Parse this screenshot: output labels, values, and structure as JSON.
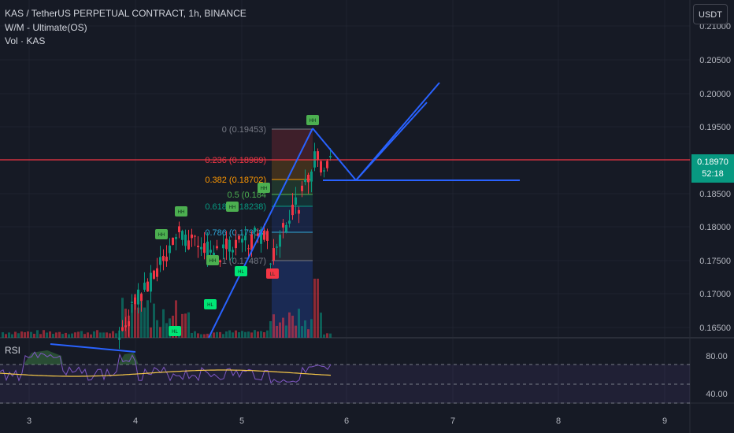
{
  "legend": {
    "symbol": "KAS / TetherUS PERPETUAL CONTRACT, 1h, BINANCE",
    "indicator1": "W/M - Ultimate(OS)",
    "indicator2": "Vol · KAS"
  },
  "currency_button": "USDT",
  "last_price": {
    "value": "0.18970",
    "countdown": "52:18"
  },
  "rsi": {
    "label": "RSI",
    "ticks": [
      "80.00",
      "40.00"
    ]
  },
  "price_axis": [
    "0.21000",
    "0.20500",
    "0.20000",
    "0.19500",
    "0.18500",
    "0.18000",
    "0.17500",
    "0.17000",
    "0.16500"
  ],
  "time_axis": [
    "3",
    "4",
    "5",
    "6",
    "7",
    "8",
    "9"
  ],
  "fib_levels": [
    {
      "ratio": "0",
      "price": "(0.19453)",
      "color": "#787b86"
    },
    {
      "ratio": "0.236",
      "price": "(0.18989)",
      "color": "#f23645"
    },
    {
      "ratio": "0.382",
      "price": "(0.18702)",
      "color": "#ff9800"
    },
    {
      "ratio": "0.5",
      "price": "(0.184",
      "color": "#4caf50"
    },
    {
      "ratio": "0.618",
      "price": "(0.18238)",
      "color": "#089981"
    },
    {
      "ratio": "0.786",
      "price": "(0.17908)",
      "color": "#2fa7d9"
    },
    {
      "ratio": "1",
      "price": "(0.17487)",
      "color": "#787b86"
    }
  ],
  "markers": [
    {
      "text": "HH",
      "color": "#4caf50"
    },
    {
      "text": "HH",
      "color": "#4caf50"
    },
    {
      "text": "HH",
      "color": "#4caf50"
    },
    {
      "text": "HH",
      "color": "#4caf50"
    },
    {
      "text": "HH",
      "color": "#4caf50"
    },
    {
      "text": "HH",
      "color": "#4caf50"
    },
    {
      "text": "HL",
      "color": "#00e676"
    },
    {
      "text": "HL",
      "color": "#00e676"
    },
    {
      "text": "HL",
      "color": "#00e676"
    },
    {
      "text": "LL",
      "color": "#f23645"
    }
  ],
  "colors": {
    "up": "#089981",
    "down": "#f23645",
    "trendline": "#2962ff",
    "rsi_line": "#7e57c2",
    "rsi_ma": "#f7c948",
    "price_line": "#f23645"
  }
}
